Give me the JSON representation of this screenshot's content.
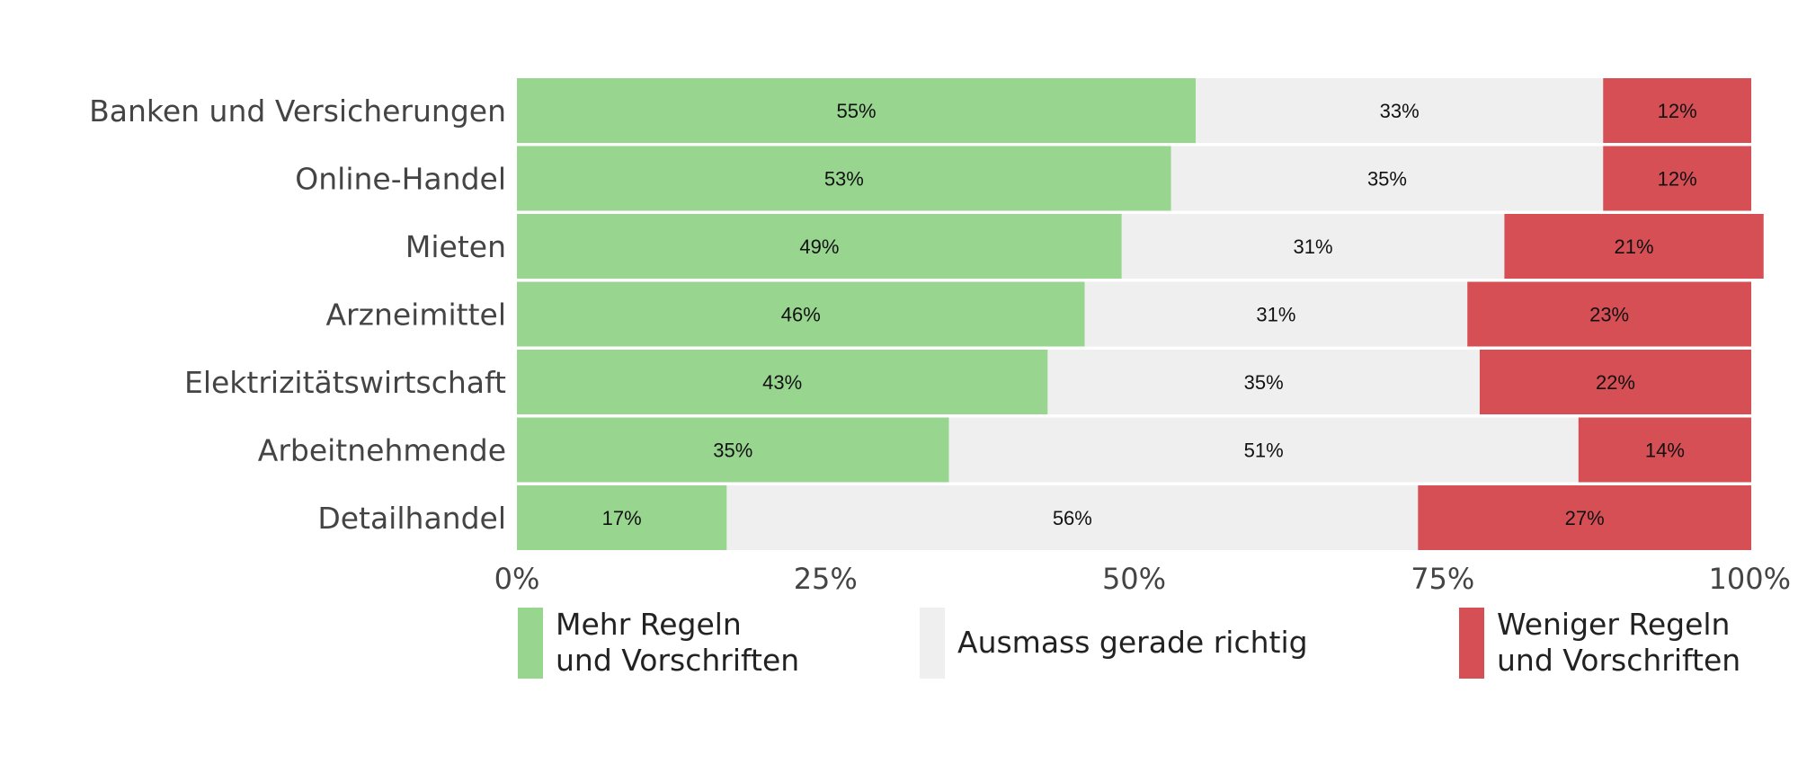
{
  "chart_data": {
    "type": "bar",
    "orientation": "horizontal",
    "stacked": true,
    "categories": [
      "Banken und Versicherungen",
      "Online-Handel",
      "Mieten",
      "Arzneimittel",
      "Elektrizitätswirtschaft",
      "Arbeitnehmende",
      "Detailhandel"
    ],
    "series": [
      {
        "name": "Mehr Regeln\nund Vorschriften",
        "color": "#98d690",
        "values": [
          55,
          53,
          49,
          46,
          43,
          35,
          17
        ]
      },
      {
        "name": "Ausmass gerade richtig",
        "color": "#efefef",
        "values": [
          33,
          35,
          31,
          31,
          35,
          51,
          56
        ]
      },
      {
        "name": "Weniger Regeln\nund Vorschriften",
        "color": "#d64f55",
        "values": [
          12,
          12,
          21,
          23,
          22,
          14,
          27
        ]
      }
    ],
    "value_labels": [
      [
        "55%",
        "53%",
        "49%",
        "46%",
        "43%",
        "35%",
        "17%"
      ],
      [
        "33%",
        "35%",
        "31%",
        "31%",
        "35%",
        "51%",
        "56%"
      ],
      [
        "12%",
        "12%",
        "21%",
        "23%",
        "22%",
        "14%",
        "27%"
      ]
    ],
    "xlim": [
      0,
      100
    ],
    "x_ticks": [
      0,
      25,
      50,
      75,
      100
    ],
    "x_tick_labels": [
      "0%",
      "25%",
      "50%",
      "75%",
      "100%"
    ],
    "grid": false,
    "legend_position": "bottom"
  }
}
